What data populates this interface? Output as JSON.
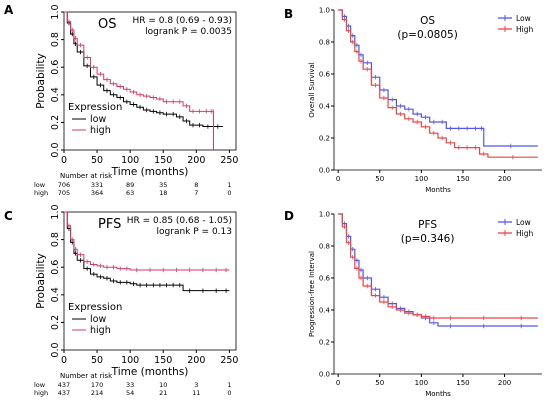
{
  "figure": {
    "panel_labels": [
      "A",
      "B",
      "C",
      "D"
    ]
  },
  "chart_data": [
    {
      "panel": "A",
      "type": "line",
      "title": "OS",
      "xlabel": "Time (months)",
      "ylabel": "Probability",
      "xlim": [
        0,
        260
      ],
      "ylim": [
        0,
        1
      ],
      "xticks": [
        0,
        50,
        100,
        150,
        200,
        250
      ],
      "yticks": [
        0.0,
        0.2,
        0.4,
        0.6,
        0.8,
        1.0
      ],
      "stats": [
        "HR = 0.8 (0.69 - 0.93)",
        "logrank P = 0.0035"
      ],
      "legend": {
        "title": "Expression",
        "position": "bottom-left",
        "entries": [
          "low",
          "high"
        ]
      },
      "series": [
        {
          "name": "low",
          "color": "#000000",
          "x": [
            0,
            5,
            10,
            15,
            20,
            30,
            40,
            50,
            60,
            70,
            80,
            90,
            100,
            110,
            120,
            130,
            140,
            150,
            160,
            170,
            180,
            190,
            200,
            210,
            225,
            240
          ],
          "y": [
            1.0,
            0.92,
            0.84,
            0.77,
            0.71,
            0.61,
            0.53,
            0.47,
            0.43,
            0.4,
            0.38,
            0.35,
            0.33,
            0.31,
            0.29,
            0.28,
            0.27,
            0.26,
            0.26,
            0.24,
            0.21,
            0.18,
            0.18,
            0.17,
            0.17,
            0.17
          ]
        },
        {
          "name": "high",
          "color": "#d43a6a",
          "x": [
            0,
            5,
            10,
            15,
            20,
            30,
            40,
            50,
            60,
            70,
            80,
            90,
            100,
            110,
            120,
            130,
            140,
            150,
            160,
            170,
            180,
            190,
            200,
            210,
            220,
            225,
            226
          ],
          "y": [
            1.0,
            0.93,
            0.87,
            0.81,
            0.76,
            0.67,
            0.6,
            0.55,
            0.51,
            0.48,
            0.46,
            0.44,
            0.42,
            0.4,
            0.39,
            0.38,
            0.37,
            0.35,
            0.35,
            0.35,
            0.32,
            0.28,
            0.28,
            0.28,
            0.28,
            0.28,
            0.0
          ]
        }
      ],
      "risk_table": {
        "header": "Number at risk",
        "rows": [
          {
            "label": "low",
            "color": "#000000",
            "values": [
              "706",
              "331",
              "89",
              "35",
              "8",
              "1"
            ]
          },
          {
            "label": "high",
            "color": "#d43a6a",
            "values": [
              "705",
              "364",
              "63",
              "18",
              "7",
              "0"
            ]
          }
        ]
      }
    },
    {
      "panel": "B",
      "type": "line",
      "title": "OS",
      "subtitle": "(p=0.0805)",
      "xlabel": "Months",
      "ylabel": "Overall Survival",
      "xlim": [
        -5,
        245
      ],
      "ylim": [
        0,
        1
      ],
      "xticks": [
        0,
        50,
        100,
        150,
        200
      ],
      "yticks": [
        0.0,
        0.2,
        0.4,
        0.6,
        0.8,
        1.0
      ],
      "legend": {
        "position": "top-right",
        "entries": [
          "Low",
          "High"
        ]
      },
      "series": [
        {
          "name": "Low",
          "color": "#5555ee",
          "x": [
            0,
            5,
            10,
            15,
            20,
            25,
            30,
            40,
            50,
            60,
            70,
            80,
            90,
            100,
            110,
            120,
            130,
            140,
            150,
            160,
            170,
            175,
            240
          ],
          "y": [
            1.0,
            0.96,
            0.9,
            0.84,
            0.78,
            0.72,
            0.67,
            0.58,
            0.5,
            0.44,
            0.4,
            0.38,
            0.35,
            0.33,
            0.3,
            0.3,
            0.26,
            0.26,
            0.26,
            0.26,
            0.26,
            0.15,
            0.15
          ]
        },
        {
          "name": "High",
          "color": "#ee4444",
          "x": [
            0,
            5,
            10,
            15,
            20,
            25,
            30,
            40,
            50,
            60,
            70,
            80,
            90,
            100,
            110,
            120,
            130,
            140,
            150,
            160,
            170,
            180,
            240
          ],
          "y": [
            1.0,
            0.94,
            0.87,
            0.8,
            0.74,
            0.68,
            0.63,
            0.53,
            0.45,
            0.39,
            0.35,
            0.32,
            0.3,
            0.27,
            0.23,
            0.2,
            0.17,
            0.14,
            0.14,
            0.14,
            0.1,
            0.08,
            0.08
          ]
        }
      ]
    },
    {
      "panel": "C",
      "type": "line",
      "title": "PFS",
      "xlabel": "Time (months)",
      "ylabel": "Probability",
      "xlim": [
        0,
        260
      ],
      "ylim": [
        0,
        1
      ],
      "xticks": [
        0,
        50,
        100,
        150,
        200,
        250
      ],
      "yticks": [
        0.0,
        0.2,
        0.4,
        0.6,
        0.8,
        1.0
      ],
      "stats": [
        "HR = 0.85 (0.68 - 1.05)",
        "logrank P = 0.13"
      ],
      "legend": {
        "title": "Expression",
        "position": "bottom-left",
        "entries": [
          "low",
          "high"
        ]
      },
      "series": [
        {
          "name": "low",
          "color": "#000000",
          "x": [
            0,
            5,
            10,
            15,
            20,
            30,
            40,
            50,
            60,
            70,
            80,
            90,
            100,
            110,
            120,
            130,
            140,
            150,
            160,
            170,
            180,
            200,
            220,
            240,
            250
          ],
          "y": [
            1.0,
            0.88,
            0.78,
            0.7,
            0.65,
            0.59,
            0.55,
            0.53,
            0.52,
            0.5,
            0.49,
            0.49,
            0.48,
            0.47,
            0.47,
            0.47,
            0.47,
            0.47,
            0.47,
            0.47,
            0.43,
            0.43,
            0.43,
            0.43,
            0.43
          ]
        },
        {
          "name": "high",
          "color": "#d43a6a",
          "x": [
            0,
            5,
            10,
            15,
            20,
            30,
            40,
            50,
            60,
            70,
            80,
            90,
            100,
            120,
            140,
            160,
            180,
            200,
            220,
            240,
            250
          ],
          "y": [
            1.0,
            0.9,
            0.8,
            0.73,
            0.69,
            0.64,
            0.62,
            0.61,
            0.6,
            0.6,
            0.59,
            0.59,
            0.58,
            0.58,
            0.58,
            0.58,
            0.58,
            0.58,
            0.58,
            0.58,
            0.58
          ]
        }
      ],
      "risk_table": {
        "header": "Number at risk",
        "rows": [
          {
            "label": "low",
            "color": "#000000",
            "values": [
              "437",
              "170",
              "33",
              "10",
              "3",
              "1"
            ]
          },
          {
            "label": "high",
            "color": "#d43a6a",
            "values": [
              "437",
              "214",
              "54",
              "21",
              "11",
              "0"
            ]
          }
        ]
      }
    },
    {
      "panel": "D",
      "type": "line",
      "title": "PFS",
      "subtitle": "(p=0.346)",
      "xlabel": "Months",
      "ylabel": "Progression-free Interval",
      "xlim": [
        -5,
        245
      ],
      "ylim": [
        0,
        1
      ],
      "xticks": [
        0,
        50,
        100,
        150,
        200
      ],
      "yticks": [
        0.0,
        0.2,
        0.4,
        0.6,
        0.8,
        1.0
      ],
      "legend": {
        "position": "top-right",
        "entries": [
          "Low",
          "High"
        ]
      },
      "series": [
        {
          "name": "Low",
          "color": "#5555ee",
          "x": [
            0,
            5,
            10,
            15,
            20,
            25,
            30,
            40,
            50,
            60,
            70,
            80,
            90,
            100,
            110,
            120,
            150,
            200,
            240
          ],
          "y": [
            1.0,
            0.94,
            0.86,
            0.78,
            0.71,
            0.65,
            0.6,
            0.53,
            0.48,
            0.44,
            0.41,
            0.39,
            0.37,
            0.35,
            0.32,
            0.3,
            0.3,
            0.3,
            0.3
          ]
        },
        {
          "name": "High",
          "color": "#ee4444",
          "x": [
            0,
            5,
            10,
            15,
            20,
            25,
            30,
            40,
            50,
            60,
            70,
            80,
            90,
            100,
            110,
            120,
            150,
            200,
            240
          ],
          "y": [
            1.0,
            0.92,
            0.82,
            0.73,
            0.66,
            0.6,
            0.55,
            0.49,
            0.45,
            0.42,
            0.4,
            0.38,
            0.37,
            0.36,
            0.35,
            0.35,
            0.35,
            0.35,
            0.35
          ]
        }
      ]
    }
  ]
}
